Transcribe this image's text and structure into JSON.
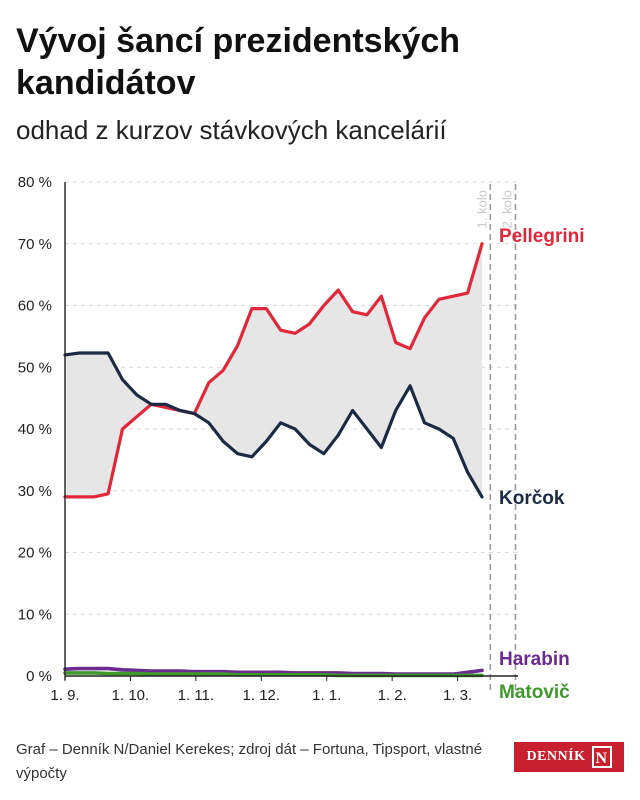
{
  "title": "Vývoj šancí prezidentských kandidátov",
  "subtitle": "odhad z kurzov stávkových kancelárií",
  "source": "Graf – Denník N/Daniel Kerekes; zdroj dát – Fortuna, Tipsport, vlastné výpočty",
  "logo": {
    "word": "DENNÍK",
    "letter": "N"
  },
  "chart_data": {
    "type": "line",
    "ylim": [
      0,
      80
    ],
    "yticks": [
      0,
      10,
      20,
      30,
      40,
      50,
      60,
      70,
      80
    ],
    "ytick_labels": [
      "0 %",
      "10 %",
      "20 %",
      "30 %",
      "40 %",
      "50 %",
      "60 %",
      "70 %",
      "80 %"
    ],
    "xticks": [
      "1. 9.",
      "1. 10.",
      "1. 11.",
      "1. 12.",
      "1. 1.",
      "1. 2.",
      "1. 3."
    ],
    "grid": true,
    "area_between": [
      "Pellegrini",
      "Korčok"
    ],
    "annotations": [
      {
        "label": "1. kolo",
        "index": 84.5
      },
      {
        "label": "2. kolo",
        "index": 89.5
      }
    ],
    "x": [
      "1.9.",
      "8.9.",
      "15.9.",
      "22.9.",
      "29.9.",
      "6.10.",
      "13.10.",
      "20.10.",
      "27.10.",
      "3.11.",
      "10.11.",
      "17.11.",
      "24.11.",
      "1.12.",
      "8.12.",
      "15.12.",
      "22.12.",
      "29.12.",
      "5.1.",
      "12.1.",
      "19.1.",
      "26.1.",
      "2.2.",
      "9.2.",
      "16.2.",
      "23.2.",
      "1.3.",
      "8.3.",
      "15.3.",
      "22.3."
    ],
    "series": [
      {
        "name": "Pellegrini",
        "color": "#e0283a",
        "values": [
          29,
          29,
          29,
          29.5,
          40,
          42,
          44,
          43.5,
          43,
          42.5,
          47.5,
          49.5,
          53.5,
          59.5,
          59.5,
          56,
          55.5,
          57,
          60,
          62.5,
          59,
          58.5,
          61.5,
          54,
          53,
          58,
          61,
          61.5,
          62,
          70
        ]
      },
      {
        "name": "Korčok",
        "color": "#1c2a44",
        "values": [
          52,
          52.3,
          52.3,
          52.3,
          48,
          45.5,
          44,
          44,
          43,
          42.5,
          41,
          38,
          36,
          35.5,
          38,
          41,
          40,
          37.5,
          36,
          39,
          43,
          40,
          37,
          43,
          47,
          41,
          40,
          38.5,
          33,
          29
        ]
      },
      {
        "name": "Harabin",
        "color": "#6a2c91",
        "values": [
          1.1,
          1.2,
          1.2,
          1.2,
          1.0,
          0.9,
          0.8,
          0.8,
          0.8,
          0.7,
          0.7,
          0.7,
          0.6,
          0.6,
          0.6,
          0.6,
          0.5,
          0.5,
          0.5,
          0.5,
          0.4,
          0.4,
          0.4,
          0.3,
          0.3,
          0.3,
          0.3,
          0.3,
          0.6,
          0.9
        ]
      },
      {
        "name": "Matovič",
        "color": "#3f9a2c",
        "values": [
          0.5,
          0.5,
          0.5,
          0.4,
          0.4,
          0.4,
          0.3,
          0.3,
          0.3,
          0.3,
          0.3,
          0.3,
          0.2,
          0.2,
          0.2,
          0.2,
          0.2,
          0.2,
          0.2,
          0.1,
          0.1,
          0.1,
          0.1,
          0.1,
          0.1,
          0.1,
          0.1,
          0.1,
          0.1,
          0.1
        ]
      }
    ]
  }
}
